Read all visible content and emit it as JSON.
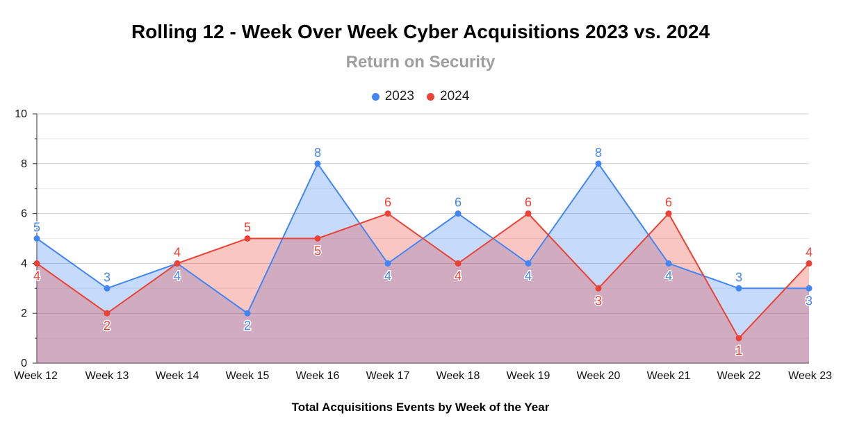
{
  "colors": {
    "series_2023": "#4285f4",
    "series_2024": "#ea4335",
    "fill_2023": "rgba(66,133,244,0.30)",
    "fill_2024": "rgba(234,67,53,0.30)",
    "grid": "#d9d9d9",
    "axis": "#333333"
  },
  "chart_data": {
    "type": "area",
    "title": "Rolling 12 - Week Over Week Cyber Acquisitions 2023 vs. 2024",
    "subtitle": "Return on Security",
    "xlabel": "Total Acquisitions Events by Week of the Year",
    "ylabel": "",
    "ylim": [
      0,
      10
    ],
    "yticks": [
      "0",
      "2",
      "4",
      "6",
      "8",
      "10"
    ],
    "grid": true,
    "legend_position": "top-center",
    "categories": [
      "Week 12",
      "Week 13",
      "Week 14",
      "Week 15",
      "Week 16",
      "Week 17",
      "Week 18",
      "Week 19",
      "Week 20",
      "Week 21",
      "Week 22",
      "Week 23"
    ],
    "series": [
      {
        "name": "2023",
        "values": [
          5,
          3,
          4,
          2,
          8,
          4,
          6,
          4,
          8,
          4,
          3,
          3
        ]
      },
      {
        "name": "2024",
        "values": [
          4,
          2,
          4,
          5,
          5,
          6,
          4,
          6,
          3,
          6,
          1,
          4
        ]
      }
    ]
  }
}
